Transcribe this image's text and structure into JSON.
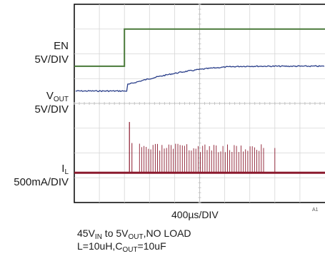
{
  "chart_data": {
    "type": "line",
    "xlabel": "400µs/DIV",
    "divisions": {
      "x": 10,
      "y": 8
    },
    "grid": true,
    "code": "A1",
    "channels": [
      {
        "label": "EN",
        "scale": "5V/DIV",
        "color": "#4a7a3a",
        "low_level_div": 2.5,
        "high_level_div": 1.0,
        "step_time_div": 2.0
      },
      {
        "label_main": "V",
        "label_sub": "OUT",
        "scale": "5V/DIV",
        "color": "#2a3f8a",
        "start_level_div": 3.5,
        "end_level_div": 2.5,
        "ramp_start_div": 2.0,
        "ramp_end_div": 7.1
      },
      {
        "label_main": "I",
        "label_sub": "L",
        "scale": "500mA/DIV",
        "color": "#8b1a2e",
        "baseline_div": 6.8,
        "initial_spike_div": 4.75,
        "pulse_region_div": [
          2.6,
          7.6
        ],
        "pulse_top_div": 5.8
      }
    ],
    "caption": {
      "line1": {
        "a": "45V",
        "a_sub": "IN",
        "b": " to 5V",
        "b_sub": "OUT",
        "c": ",NO LOAD"
      },
      "line2": {
        "a": "L=10uH,C",
        "a_sub": "OUT",
        "b": "=10uF"
      }
    }
  }
}
